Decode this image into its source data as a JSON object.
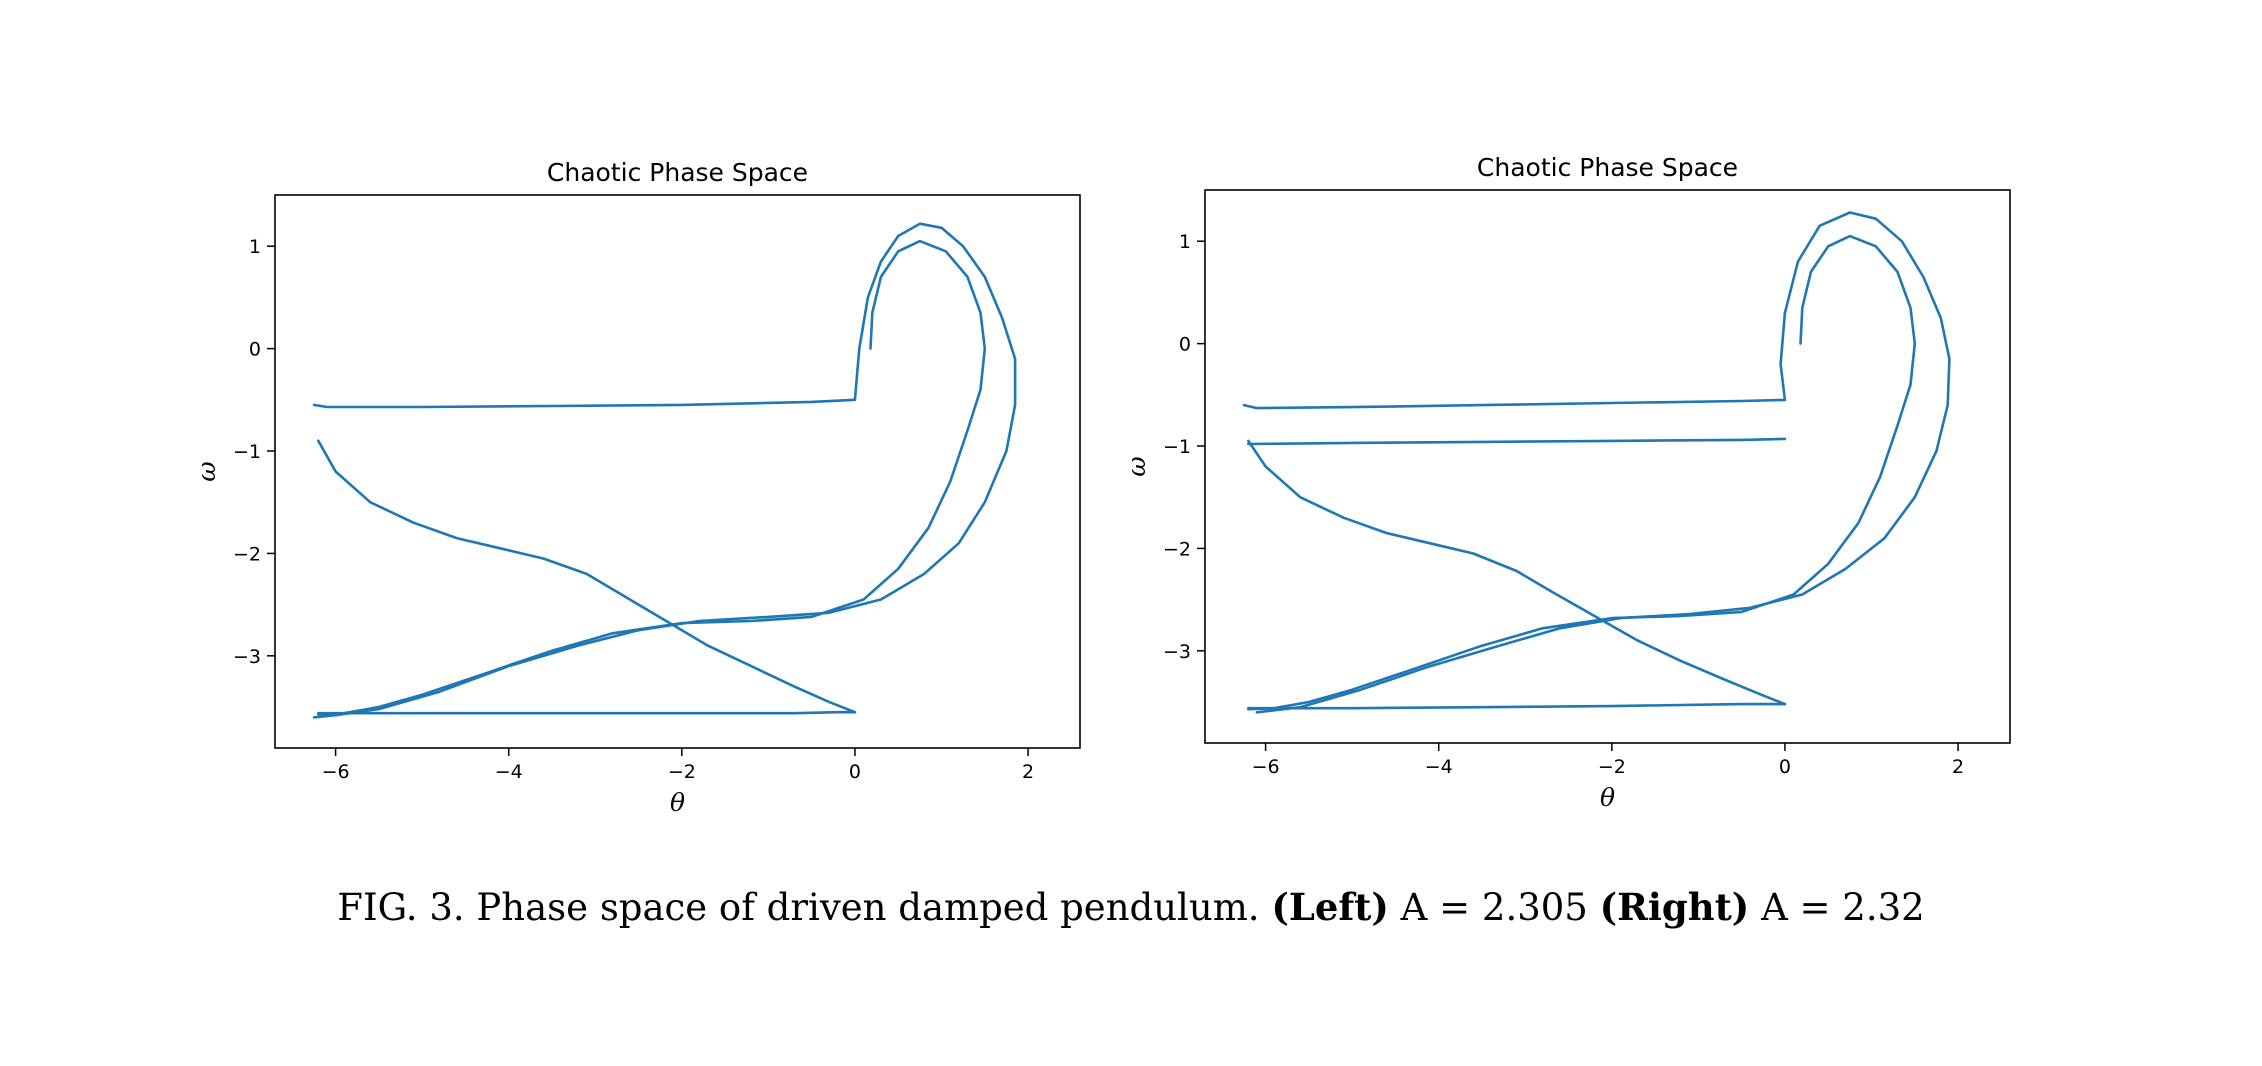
{
  "caption": {
    "prefix": "FIG. 3. Phase space of driven damped pendulum.",
    "left_label": "(Left)",
    "left_value": "A = 2.305",
    "right_label": "(Right)",
    "right_value": "A = 2.32"
  },
  "chart_data": [
    {
      "type": "line",
      "title": "Chaotic Phase Space",
      "xlabel": "θ",
      "ylabel": "ω",
      "xlim": [
        -6.7,
        2.6
      ],
      "ylim": [
        -3.9,
        1.5
      ],
      "xticks": [
        -6,
        -4,
        -2,
        0,
        2
      ],
      "yticks": [
        1,
        0,
        -1,
        -2,
        -3
      ],
      "xtick_labels": [
        "−6",
        "−4",
        "−2",
        "0",
        "2"
      ],
      "ytick_labels": [
        "1",
        "0",
        "−1",
        "−2",
        "−3"
      ],
      "grid": false,
      "color": "#1f77b4",
      "series": [
        {
          "x": [
            0.18,
            0.2,
            0.3,
            0.5,
            0.75,
            1.05,
            1.3,
            1.45,
            1.5,
            1.45,
            1.3,
            1.1,
            0.85,
            0.5,
            0.1,
            -0.5,
            -1.2,
            -2.0,
            -2.8,
            -3.5,
            -4.3,
            -5.0,
            -5.5,
            -5.9,
            -6.2
          ],
          "y": [
            0.0,
            0.35,
            0.7,
            0.95,
            1.05,
            0.95,
            0.7,
            0.35,
            0.0,
            -0.4,
            -0.8,
            -1.3,
            -1.75,
            -2.15,
            -2.45,
            -2.62,
            -2.66,
            -2.68,
            -2.78,
            -2.95,
            -3.18,
            -3.38,
            -3.5,
            -3.56,
            -3.57
          ]
        },
        {
          "x": [
            -6.2,
            -5.5,
            -4.5,
            -3.5,
            -2.5,
            -1.5,
            -0.7,
            -0.2,
            0.0
          ],
          "y": [
            -3.56,
            -3.56,
            -3.56,
            -3.56,
            -3.56,
            -3.56,
            -3.56,
            -3.55,
            -3.55
          ]
        },
        {
          "x": [
            0.0,
            -0.3,
            -0.7,
            -1.2,
            -1.7,
            -2.2,
            -2.7,
            -3.1,
            -3.6,
            -4.1,
            -4.6,
            -5.1,
            -5.6,
            -6.0,
            -6.2
          ],
          "y": [
            -3.55,
            -3.45,
            -3.3,
            -3.1,
            -2.9,
            -2.65,
            -2.4,
            -2.2,
            -2.05,
            -1.95,
            -1.85,
            -1.7,
            -1.5,
            -1.2,
            -0.9
          ]
        },
        {
          "x": [
            -6.25,
            -6.1,
            -5.0,
            -3.5,
            -2.0,
            -0.5,
            0.0
          ],
          "y": [
            -0.55,
            -0.57,
            -0.57,
            -0.56,
            -0.55,
            -0.52,
            -0.5
          ]
        },
        {
          "x": [
            0.0,
            0.05,
            0.15,
            0.3,
            0.5,
            0.75,
            1.0,
            1.25,
            1.5,
            1.7,
            1.85,
            1.85,
            1.75,
            1.5,
            1.2,
            0.8,
            0.3,
            -0.3,
            -1.0,
            -1.8,
            -2.5,
            -3.2,
            -4.0,
            -4.8,
            -5.5,
            -6.0,
            -6.25
          ],
          "y": [
            -0.5,
            0.0,
            0.5,
            0.85,
            1.1,
            1.22,
            1.18,
            1.0,
            0.7,
            0.3,
            -0.1,
            -0.55,
            -1.0,
            -1.5,
            -1.9,
            -2.2,
            -2.45,
            -2.58,
            -2.62,
            -2.66,
            -2.75,
            -2.9,
            -3.1,
            -3.35,
            -3.52,
            -3.58,
            -3.6
          ]
        }
      ]
    },
    {
      "type": "line",
      "title": "Chaotic Phase Space",
      "xlabel": "θ",
      "ylabel": "ω",
      "xlim": [
        -6.7,
        2.6
      ],
      "ylim": [
        -3.9,
        1.5
      ],
      "xticks": [
        -6,
        -4,
        -2,
        0,
        2
      ],
      "yticks": [
        1,
        0,
        -1,
        -2,
        -3
      ],
      "xtick_labels": [
        "−6",
        "−4",
        "−2",
        "0",
        "2"
      ],
      "ytick_labels": [
        "1",
        "0",
        "−1",
        "−2",
        "−3"
      ],
      "grid": false,
      "color": "#1f77b4",
      "series": [
        {
          "x": [
            0.18,
            0.2,
            0.3,
            0.5,
            0.75,
            1.05,
            1.3,
            1.45,
            1.5,
            1.45,
            1.3,
            1.1,
            0.85,
            0.5,
            0.1,
            -0.5,
            -1.2,
            -2.0,
            -2.8,
            -3.5,
            -4.3,
            -5.0,
            -5.5,
            -5.9,
            -6.2
          ],
          "y": [
            0.0,
            0.35,
            0.7,
            0.95,
            1.05,
            0.95,
            0.7,
            0.35,
            0.0,
            -0.4,
            -0.8,
            -1.3,
            -1.75,
            -2.15,
            -2.45,
            -2.62,
            -2.66,
            -2.68,
            -2.78,
            -2.95,
            -3.18,
            -3.38,
            -3.5,
            -3.56,
            -3.57
          ]
        },
        {
          "x": [
            -6.2,
            -5.0,
            -3.5,
            -2.0,
            -0.5,
            0.0
          ],
          "y": [
            -3.56,
            -3.56,
            -3.55,
            -3.54,
            -3.52,
            -3.52
          ]
        },
        {
          "x": [
            0.0,
            -0.3,
            -0.7,
            -1.2,
            -1.7,
            -2.2,
            -2.7,
            -3.1,
            -3.6,
            -4.1,
            -4.6,
            -5.1,
            -5.6,
            -6.0,
            -6.2
          ],
          "y": [
            -3.52,
            -3.42,
            -3.28,
            -3.1,
            -2.9,
            -2.66,
            -2.42,
            -2.22,
            -2.05,
            -1.95,
            -1.85,
            -1.7,
            -1.5,
            -1.2,
            -0.95
          ]
        },
        {
          "x": [
            -6.2,
            -5.0,
            -3.5,
            -2.0,
            -0.5,
            0.0
          ],
          "y": [
            -0.98,
            -0.97,
            -0.96,
            -0.95,
            -0.94,
            -0.93
          ]
        },
        {
          "x": [
            -6.25,
            -6.1,
            -5.0,
            -3.5,
            -2.0,
            -0.5,
            0.0
          ],
          "y": [
            -0.6,
            -0.63,
            -0.62,
            -0.6,
            -0.58,
            -0.56,
            -0.55
          ]
        },
        {
          "x": [
            0.0,
            -0.05,
            0.0,
            0.15,
            0.4,
            0.75,
            1.05,
            1.35,
            1.6,
            1.8,
            1.9,
            1.88,
            1.75,
            1.5,
            1.15,
            0.7,
            0.2,
            -0.4,
            -1.1,
            -1.9,
            -2.6,
            -3.3,
            -4.1,
            -4.9,
            -5.6,
            -6.1
          ],
          "y": [
            -0.55,
            -0.2,
            0.3,
            0.8,
            1.15,
            1.28,
            1.22,
            1.0,
            0.65,
            0.25,
            -0.15,
            -0.6,
            -1.05,
            -1.5,
            -1.9,
            -2.2,
            -2.45,
            -2.58,
            -2.64,
            -2.68,
            -2.78,
            -2.95,
            -3.15,
            -3.38,
            -3.55,
            -3.6
          ]
        }
      ]
    }
  ]
}
